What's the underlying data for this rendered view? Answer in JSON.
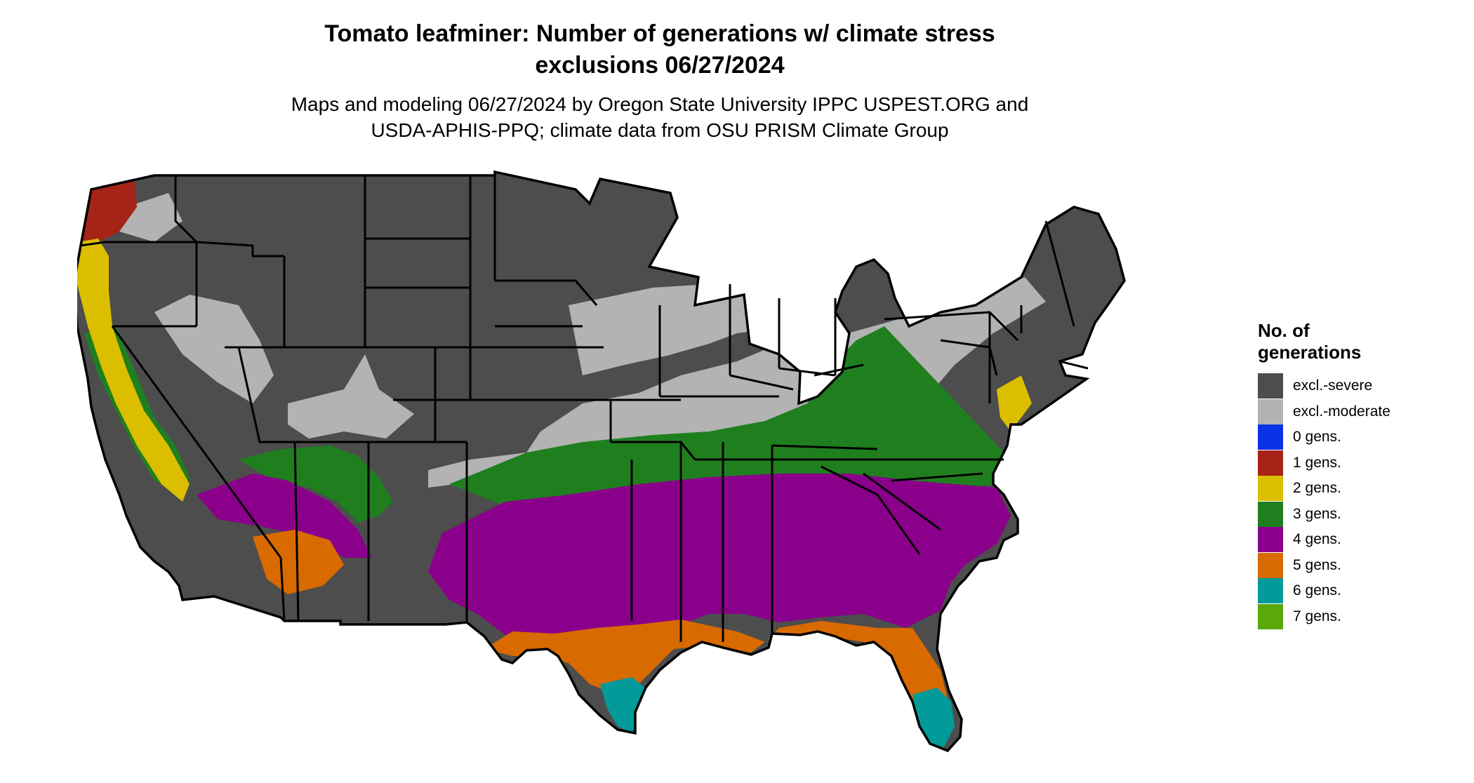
{
  "title": {
    "line1": "Tomato leafminer: Number of generations w/ climate stress",
    "line2": "exclusions 06/27/2024"
  },
  "subtitle": {
    "line1": "Maps and modeling 06/27/2024 by Oregon State University IPPC USPEST.ORG and",
    "line2": "USDA-APHIS-PPQ; climate data from OSU PRISM Climate Group"
  },
  "legend": {
    "title_line1": "No. of",
    "title_line2": "generations",
    "items": [
      {
        "label": "excl.-severe",
        "color": "#4d4d4d"
      },
      {
        "label": "excl.-moderate",
        "color": "#b3b3b3"
      },
      {
        "label": "0 gens.",
        "color": "#0a32e6"
      },
      {
        "label": "1 gens.",
        "color": "#a52417"
      },
      {
        "label": "2 gens.",
        "color": "#dcbe00"
      },
      {
        "label": "3 gens.",
        "color": "#1f7f1f"
      },
      {
        "label": "4 gens.",
        "color": "#8b008b"
      },
      {
        "label": "5 gens.",
        "color": "#d96a00"
      },
      {
        "label": "6 gens.",
        "color": "#039a9a"
      },
      {
        "label": "7 gens.",
        "color": "#5ba80a"
      }
    ]
  },
  "map": {
    "region": "contiguous United States",
    "category_colors": {
      "excl_severe": "#4d4d4d",
      "excl_moderate": "#b3b3b3",
      "gens_1": "#a52417",
      "gens_2": "#dcbe00",
      "gens_3": "#1f7f1f",
      "gens_4": "#8b008b",
      "gens_5": "#d96a00",
      "gens_6": "#039a9a",
      "gens_7": "#5ba80a"
    },
    "border_color": "#000000"
  }
}
